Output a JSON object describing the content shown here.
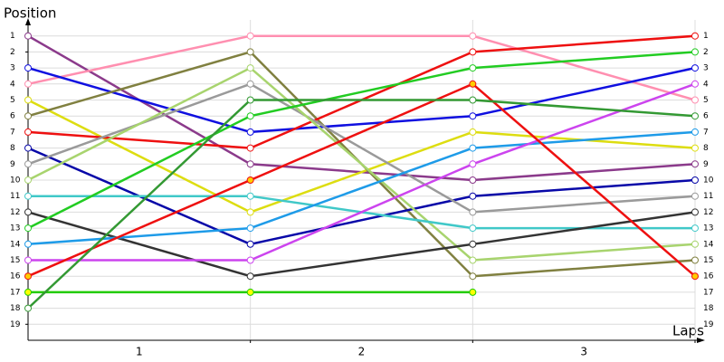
{
  "chart_data": {
    "type": "line",
    "ylabel": "Position",
    "xlabel": "Laps",
    "x": [
      0,
      1,
      2,
      3
    ],
    "xlim": [
      0,
      3
    ],
    "xticks": [
      1,
      2,
      3
    ],
    "ylim": [
      0,
      20
    ],
    "yticks": [
      1,
      2,
      3,
      4,
      5,
      6,
      7,
      8,
      9,
      10,
      11,
      12,
      13,
      14,
      15,
      16,
      17,
      18,
      19
    ],
    "y_inverted": true,
    "grid": true,
    "series": [
      {
        "color": "#8b3a8b",
        "marker_fill": "#ffffff",
        "values": [
          1,
          9,
          10,
          9
        ]
      },
      {
        "color": "#ff8fb0",
        "marker_fill": "#ffffff",
        "values": [
          4,
          1,
          1,
          5
        ]
      },
      {
        "color": "#1010e0",
        "marker_fill": "#ffffff",
        "values": [
          3,
          7,
          6,
          3
        ]
      },
      {
        "color": "#dddd10",
        "marker_fill": "#ffffff",
        "values": [
          5,
          12,
          7,
          8
        ]
      },
      {
        "color": "#808040",
        "marker_fill": "#ffffff",
        "values": [
          6,
          2,
          16,
          15
        ]
      },
      {
        "color": "#ee1010",
        "marker_fill": "#ffffff",
        "values": [
          7,
          8,
          2,
          1
        ]
      },
      {
        "color": "#0808a8",
        "marker_fill": "#ffffff",
        "values": [
          8,
          14,
          11,
          10
        ]
      },
      {
        "color": "#9a9a9a",
        "marker_fill": "#ffffff",
        "values": [
          9,
          4,
          12,
          11
        ]
      },
      {
        "color": "#a8d46e",
        "marker_fill": "#ffffff",
        "values": [
          10,
          3,
          15,
          14
        ]
      },
      {
        "color": "#40c8c8",
        "marker_fill": "#ffffff",
        "values": [
          11,
          11,
          13,
          13
        ]
      },
      {
        "color": "#333333",
        "marker_fill": "#ffffff",
        "values": [
          12,
          16,
          14,
          12
        ]
      },
      {
        "color": "#22cc22",
        "marker_fill": "#ffffff",
        "values": [
          13,
          6,
          3,
          2
        ]
      },
      {
        "color": "#1e9be8",
        "marker_fill": "#ffffff",
        "values": [
          14,
          13,
          8,
          7
        ]
      },
      {
        "color": "#cc44ee",
        "marker_fill": "#ffffff",
        "values": [
          15,
          15,
          9,
          4
        ]
      },
      {
        "color": "#ee1010",
        "marker_fill": "#ffcc00",
        "values": [
          16,
          10,
          4,
          16
        ]
      },
      {
        "color": "#22cc00",
        "marker_fill": "#ffff00",
        "values": [
          17,
          17,
          17,
          null
        ]
      },
      {
        "color": "#339933",
        "marker_fill": "#ffffff",
        "values": [
          18,
          5,
          5,
          6
        ]
      }
    ]
  }
}
